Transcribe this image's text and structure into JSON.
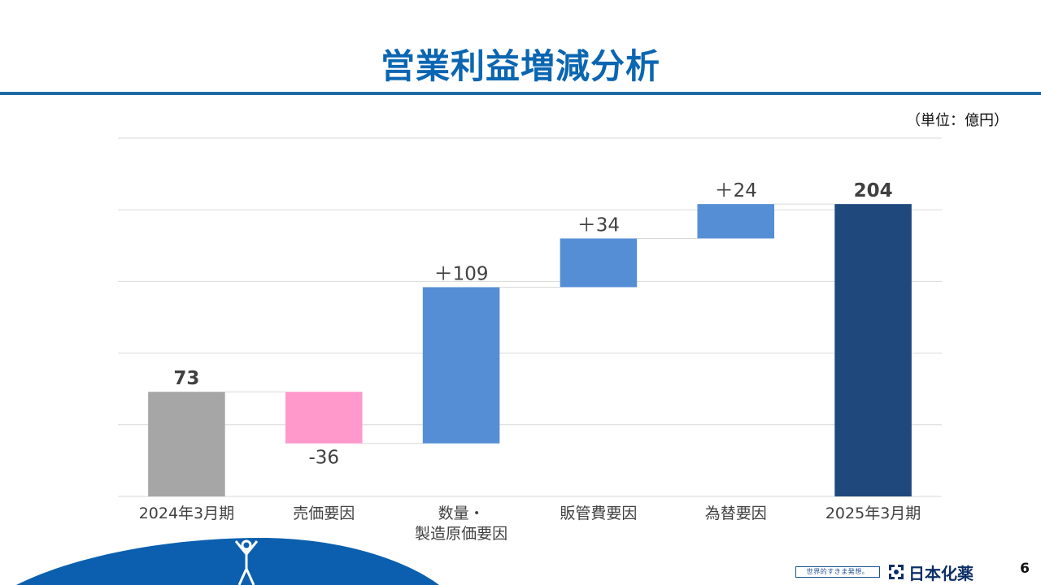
{
  "page": {
    "title": "営業利益増減分析",
    "unit": "（単位：億円）",
    "page_number": "6",
    "footer_tagline": "世界的すきま発想。",
    "brand_name": "日本化薬"
  },
  "colors": {
    "title": "#0b66b2",
    "rule": "#1f6aa5",
    "start_bar": "#a6a6a6",
    "decrease_bar": "#ff99cc",
    "increase_bar": "#558ed5",
    "end_bar": "#1f497d",
    "grid": "#d9d9d9"
  },
  "chart_data": {
    "type": "waterfall",
    "title": "",
    "xlabel": "",
    "ylabel": "",
    "ylim": [
      0,
      250
    ],
    "grid": true,
    "legend": "none",
    "categories": [
      "2024年3月期",
      "売価要因",
      "数量・\n製造原価要因",
      "販管費要因",
      "為替要因",
      "2025年3月期"
    ],
    "category_lines": [
      [
        "2024年3月期"
      ],
      [
        "売価要因"
      ],
      [
        "数量・",
        "製造原価要因"
      ],
      [
        "販管費要因"
      ],
      [
        "為替要因"
      ],
      [
        "2025年3月期"
      ]
    ],
    "values": [
      73,
      -36,
      109,
      34,
      24,
      204
    ],
    "kinds": [
      "total",
      "delta",
      "delta",
      "delta",
      "delta",
      "total"
    ],
    "labels": [
      "73",
      "-36",
      "＋109",
      "＋34",
      "＋24",
      "204"
    ]
  }
}
